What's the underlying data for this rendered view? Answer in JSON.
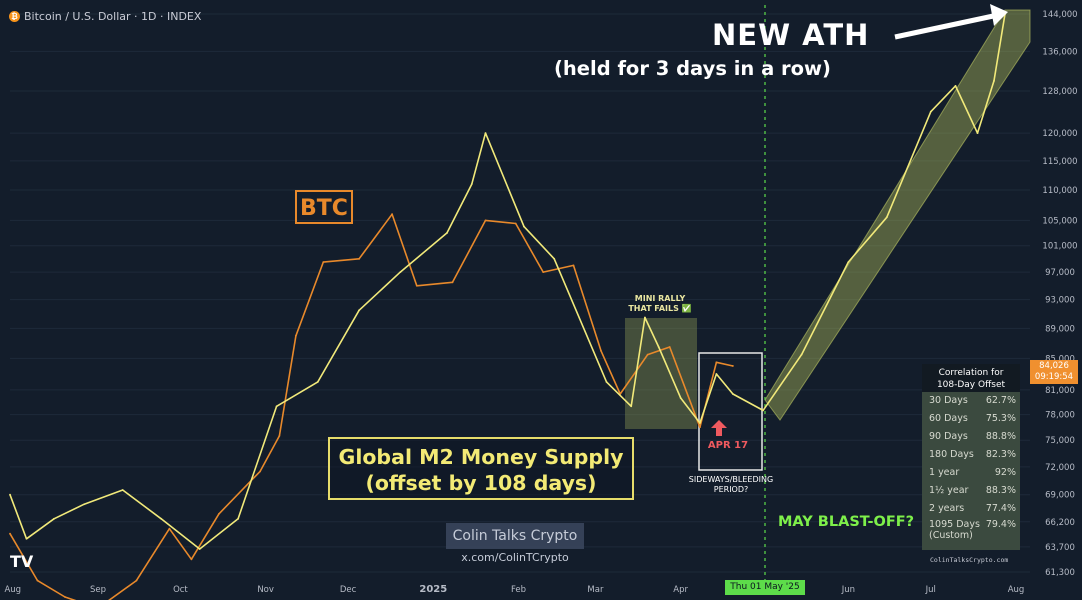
{
  "header": {
    "symbol_badge": "₿",
    "title": "Bitcoin / U.S. Dollar · 1D · INDEX"
  },
  "annotations": {
    "ath_title": "NEW ATH",
    "ath_subtitle": "(held for 3 days in a row)",
    "btc_label": "BTC",
    "m2_line1": "Global M2 Money Supply",
    "m2_line2": "(offset by 108 days)",
    "mini_rally_line1": "MINI RALLY",
    "mini_rally_line2": "THAT FAILS ✅",
    "apr17": "APR 17",
    "sideways_line1": "SIDEWAYS/BLEEDING",
    "sideways_line2": "PERIOD?",
    "blast_off": "MAY BLAST-OFF?",
    "watermark_name": "Colin Talks Crypto",
    "watermark_handle": "x.com/ColinTCrypto",
    "tv_logo": "TV",
    "current_price": "84,026",
    "current_time": "09:19:54",
    "cursor_date": "Thu 01 May '25",
    "credit": "ColinTalksCrypto.com"
  },
  "correlation_table": {
    "title_line1": "Correlation for",
    "title_line2": "108-Day Offset",
    "rows": [
      {
        "label": "30 Days",
        "value": "62.7%"
      },
      {
        "label": "60 Days",
        "value": "75.3%"
      },
      {
        "label": "90 Days",
        "value": "88.8%"
      },
      {
        "label": "180 Days",
        "value": "82.3%"
      },
      {
        "label": "1 year",
        "value": "92%"
      },
      {
        "label": "1½ year",
        "value": "88.3%"
      },
      {
        "label": "2 years",
        "value": "77.4%"
      },
      {
        "label": "1095 Days",
        "label2": "(Custom)",
        "value": "79.4%"
      }
    ]
  },
  "colors": {
    "background": "#131d2b",
    "btc": "#e8892b",
    "m2": "#f1e97a",
    "channel": "#a9b85a",
    "cursor": "#5ddc4a",
    "apr17": "#ef5a5f"
  },
  "chart_data": {
    "type": "line",
    "x_axis_labels": [
      "Aug",
      "Sep",
      "Oct",
      "Nov",
      "Dec",
      "2025",
      "Feb",
      "Mar",
      "Apr",
      "Thu 01 May '25",
      "Jun",
      "Jul",
      "Aug"
    ],
    "y_tick_labels": [
      "144,000",
      "136,000",
      "128,000",
      "120,000",
      "115,000",
      "110,000",
      "105,000",
      "101,000",
      "97,000",
      "93,000",
      "89,000",
      "85,000",
      "81,000",
      "78,000",
      "75,000",
      "72,000",
      "69,000",
      "66,200",
      "63,700",
      "61,300"
    ],
    "ylim": [
      61300,
      144000
    ],
    "scale": "log",
    "series": [
      {
        "name": "BTC",
        "x": [
          "2024-07-31",
          "2024-08-10",
          "2024-08-20",
          "2024-09-01",
          "2024-09-15",
          "2024-09-27",
          "2024-10-05",
          "2024-10-15",
          "2024-10-30",
          "2024-11-06",
          "2024-11-12",
          "2024-11-22",
          "2024-12-05",
          "2024-12-17",
          "2024-12-26",
          "2025-01-08",
          "2025-01-20",
          "2025-01-31",
          "2025-02-10",
          "2025-02-21",
          "2025-03-03",
          "2025-03-10",
          "2025-03-20",
          "2025-03-28",
          "2025-04-08",
          "2025-04-14",
          "2025-04-20"
        ],
        "y": [
          65000,
          60500,
          59000,
          58000,
          60500,
          65500,
          62500,
          67000,
          71500,
          75500,
          88000,
          98500,
          99000,
          106000,
          95000,
          95500,
          105000,
          104500,
          97000,
          98000,
          86000,
          80500,
          85500,
          86500,
          76500,
          84500,
          84026
        ]
      },
      {
        "name": "Global M2 Money Supply (offset by 108 days)",
        "x": [
          "2024-07-31",
          "2024-08-06",
          "2024-08-16",
          "2024-08-27",
          "2024-09-10",
          "2024-09-24",
          "2024-10-08",
          "2024-10-22",
          "2024-11-05",
          "2024-11-20",
          "2024-12-05",
          "2024-12-20",
          "2025-01-06",
          "2025-01-15",
          "2025-01-20",
          "2025-02-03",
          "2025-02-14",
          "2025-03-05",
          "2025-03-14",
          "2025-03-19",
          "2025-03-24",
          "2025-04-01",
          "2025-04-08",
          "2025-04-14",
          "2025-04-20",
          "2025-05-01",
          "2025-05-15",
          "2025-06-01",
          "2025-06-15",
          "2025-07-01",
          "2025-07-10",
          "2025-07-18",
          "2025-07-24",
          "2025-07-28"
        ],
        "y": [
          69000,
          64500,
          66500,
          68000,
          69500,
          66500,
          63500,
          66500,
          79000,
          82000,
          91500,
          97000,
          103000,
          111000,
          120000,
          104000,
          99000,
          82000,
          79000,
          90500,
          86500,
          80000,
          77000,
          83000,
          80500,
          78500,
          85500,
          98500,
          105500,
          124000,
          129000,
          120000,
          130000,
          144000
        ]
      }
    ],
    "legend_position": "none"
  }
}
